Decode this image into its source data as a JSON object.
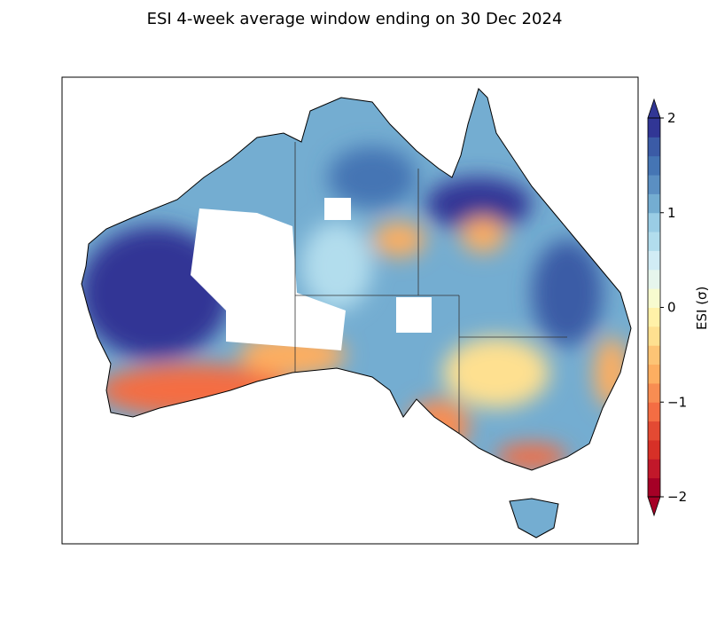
{
  "title": "ESI 4-week average window ending on 30 Dec 2024",
  "colorbar": {
    "label": "ESI (σ)",
    "min": -2,
    "max": 2,
    "step": 0.2,
    "ticks": [
      {
        "value": 2,
        "label": "2"
      },
      {
        "value": 1,
        "label": "1"
      },
      {
        "value": 0,
        "label": "0"
      },
      {
        "value": -1,
        "label": "−1"
      },
      {
        "value": -2,
        "label": "−2"
      }
    ],
    "colors": [
      "#a50026",
      "#c1182a",
      "#d73027",
      "#e34a33",
      "#f46d43",
      "#f88d52",
      "#fdae61",
      "#fdc475",
      "#fee090",
      "#fff1a8",
      "#f7fbcf",
      "#e6f5ec",
      "#d1ecf5",
      "#b2dded",
      "#9acde5",
      "#74add1",
      "#5b8fc2",
      "#4575b4",
      "#3b5ba6",
      "#313695"
    ],
    "extend": "both"
  }
}
